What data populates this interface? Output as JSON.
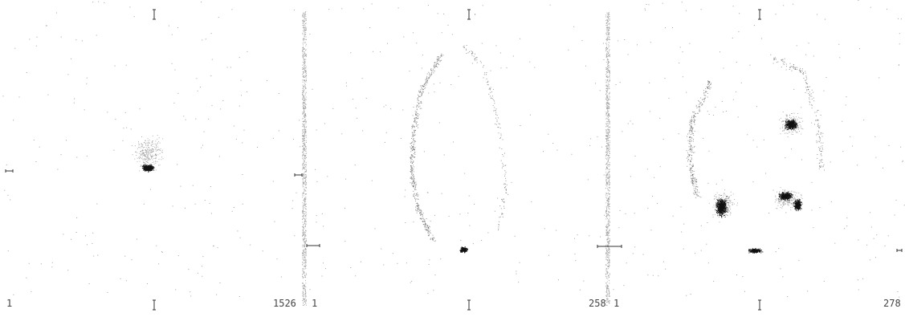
{
  "panels": [
    {
      "name": "panel-1",
      "min_label": "1",
      "max_label": "1526"
    },
    {
      "name": "panel-2",
      "min_label": "1",
      "max_label": "258"
    },
    {
      "name": "panel-3",
      "min_label": "1",
      "max_label": "278"
    }
  ],
  "colors": {
    "background": "#ffffff",
    "dots": "#555555",
    "hotspot": "#111111",
    "divider": "#9a9a9a"
  }
}
